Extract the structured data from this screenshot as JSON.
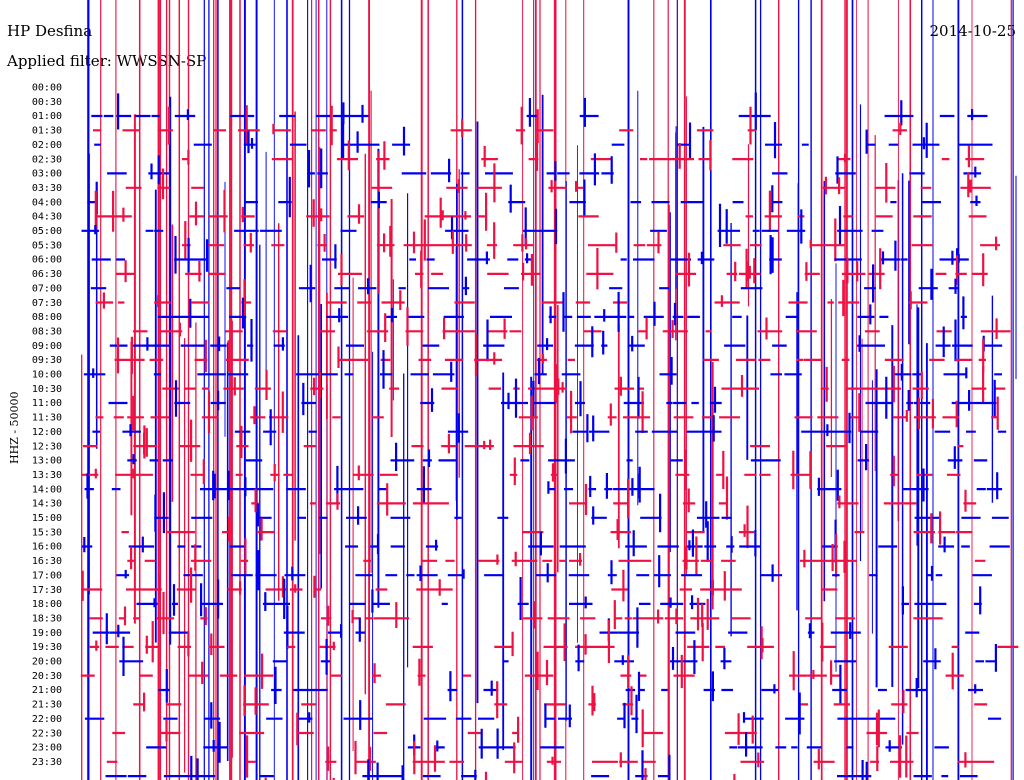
{
  "header": {
    "station": "HP Desfina",
    "filter": "Applied filter: WWSSN-SP",
    "date": "2014-10-25"
  },
  "colors": {
    "trace_a": "#0000ee",
    "trace_b": "#ee1144"
  },
  "chart_data": {
    "type": "line",
    "title": "HP Desfina",
    "ylabel": "HHZ - 50000",
    "ytick_labels": [
      "00:00",
      "00:30",
      "01:00",
      "01:30",
      "02:00",
      "02:30",
      "03:00",
      "03:30",
      "04:00",
      "04:30",
      "05:00",
      "05:30",
      "06:00",
      "06:30",
      "07:00",
      "07:30",
      "08:00",
      "08:30",
      "09:00",
      "09:30",
      "10:00",
      "10:30",
      "11:00",
      "11:30",
      "12:00",
      "12:30",
      "13:00",
      "13:30",
      "14:00",
      "14:30",
      "15:00",
      "15:30",
      "16:00",
      "16:30",
      "17:00",
      "17:30",
      "18:00",
      "18:30",
      "19:00",
      "19:30",
      "20:00",
      "20:30",
      "21:00",
      "21:30",
      "22:00",
      "22:30",
      "23:00",
      "23:30"
    ],
    "series": [
      {
        "color": "#0000ee",
        "rows": "even (00:00, 01:00, ...)"
      },
      {
        "color": "#ee1144",
        "rows": "odd (00:30, 01:30, ...)"
      }
    ],
    "grid": false,
    "legend": "none",
    "notes": "Helicorder drum plot; each row is a 30-minute segment of the vertical component trace, alternating blue and red."
  }
}
